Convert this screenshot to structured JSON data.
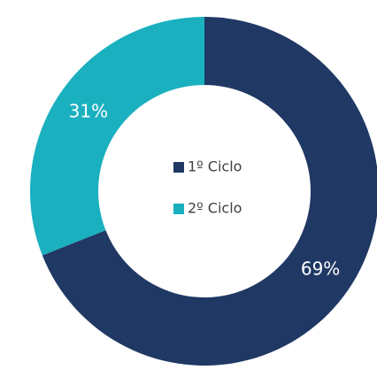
{
  "chart_data": {
    "type": "donut",
    "categories": [
      "1º Ciclo",
      "2º Ciclo"
    ],
    "values": [
      69,
      31
    ],
    "value_labels": [
      "69%",
      "31%"
    ],
    "colors": [
      "#203864",
      "#1ab0c0"
    ]
  }
}
